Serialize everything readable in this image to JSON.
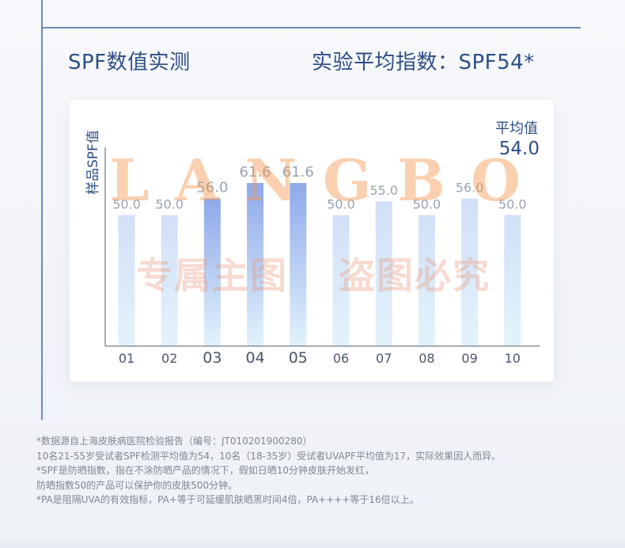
{
  "headings": {
    "left": "SPF数值实测",
    "right": "实验平均指数：SPF54*"
  },
  "watermark": {
    "letters": [
      "L",
      "A",
      "N",
      "G",
      "B",
      "O"
    ],
    "phrase_left": "专属主图",
    "phrase_right": "盗图必究"
  },
  "chart_data": {
    "type": "bar",
    "ylabel": "样品SPF值",
    "average": {
      "label": "平均值",
      "value": "54.0"
    },
    "categories": [
      "01",
      "02",
      "03",
      "04",
      "05",
      "06",
      "07",
      "08",
      "09",
      "10"
    ],
    "values": [
      50.0,
      50.0,
      56.0,
      61.6,
      61.6,
      50.0,
      55.0,
      50.0,
      56.0,
      50.0
    ],
    "value_labels": [
      "50.0",
      "50.0",
      "56.0",
      "61.6",
      "61.6",
      "50.0",
      "55.0",
      "50.0",
      "56.0",
      "50.0"
    ],
    "highlighted": [
      "03",
      "04",
      "05"
    ],
    "colors": {
      "highlight": "#8ea8ea",
      "normal": "#d2e0f7",
      "bottom": "#e2f3fb"
    }
  },
  "footnotes": [
    "*数据源自上海皮肤病医院检验报告（编号：JT010201900280）",
    "10名21-55岁受试者SPF检测平均值为54，10名（18-35岁）受试者UVAPF平均值为17，实际效果因人而异。",
    "*SPF是防晒指数，指在不涂防晒产品的情况下，假如日晒10分钟皮肤开始发红，",
    "防晒指数50的产品可以保护你的皮肤500分钟。",
    "*PA是阻隔UVA的有效指标，PA+等于可延缓肌肤晒黑时间4倍，PA++++等于16倍以上。"
  ]
}
